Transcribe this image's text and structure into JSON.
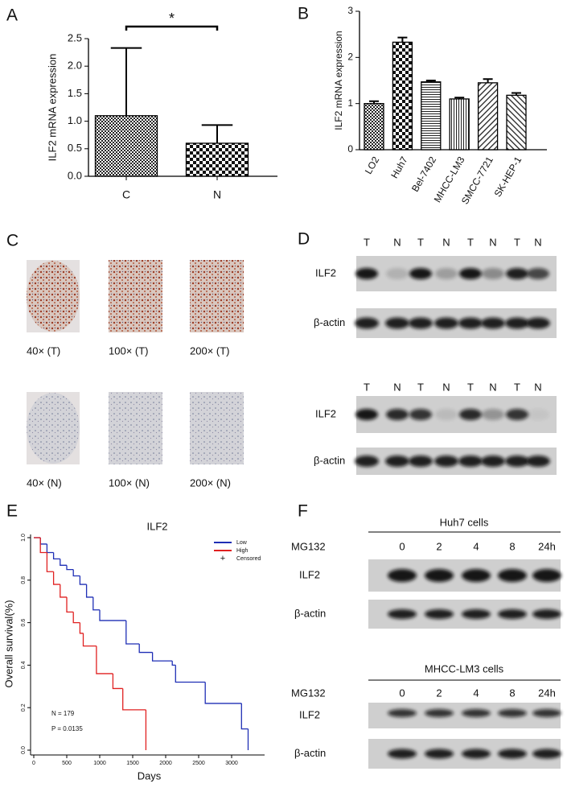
{
  "panel_labels": [
    "A",
    "B",
    "C",
    "D",
    "E",
    "F"
  ],
  "chart_data": [
    {
      "type": "bar",
      "y_label": "ILF2 mRNA expression",
      "categories": [
        "C",
        "N"
      ],
      "values": [
        1.1,
        0.6
      ],
      "errors": [
        1.23,
        0.33
      ],
      "patterns": [
        "fine-check",
        "check"
      ],
      "ylim": [
        0,
        2.5
      ],
      "yticks": [
        {
          "value": 0,
          "label": "0.0"
        },
        0.5,
        {
          "value": 1,
          "label": "1.0"
        },
        1.5,
        {
          "value": 2,
          "label": "2.0"
        },
        2.5
      ],
      "annotation": "*"
    },
    {
      "type": "bar",
      "y_label": "ILF2 mRNA expression",
      "categories": [
        "LO2",
        "Huh7",
        "Bel-7402",
        "MHCC-LM3",
        "SMCC-7721",
        "SK-HEP-1"
      ],
      "values": [
        1.0,
        2.33,
        1.47,
        1.1,
        1.45,
        1.18
      ],
      "errors": [
        0.05,
        0.1,
        0.03,
        0.03,
        0.08,
        0.05
      ],
      "patterns": [
        "fine-check",
        "check",
        "hlines",
        "vlines",
        "diag",
        "diag2"
      ],
      "ylim": [
        0,
        3
      ],
      "yticks": [
        0,
        1,
        2,
        3
      ]
    },
    {
      "type": "step",
      "title": "ILF2",
      "x_label": "Days",
      "y_label": "Overall survival(%)",
      "series": [
        {
          "name": "Low",
          "color": "#1f2fb5",
          "x": [
            0,
            100,
            200,
            300,
            400,
            500,
            600,
            700,
            800,
            900,
            1000,
            1400,
            1600,
            1800,
            2100,
            2150,
            2600,
            3150,
            3250
          ],
          "values": [
            1.0,
            0.97,
            0.93,
            0.9,
            0.87,
            0.85,
            0.82,
            0.78,
            0.72,
            0.66,
            0.61,
            0.5,
            0.46,
            0.42,
            0.4,
            0.32,
            0.22,
            0.1,
            0.0
          ]
        },
        {
          "name": "High",
          "color": "#e02020",
          "x": [
            0,
            100,
            200,
            300,
            400,
            500,
            600,
            700,
            750,
            950,
            1200,
            1350,
            1700
          ],
          "values": [
            1.0,
            0.93,
            0.84,
            0.78,
            0.72,
            0.65,
            0.6,
            0.55,
            0.49,
            0.36,
            0.29,
            0.19,
            0.0
          ]
        }
      ],
      "censored_label": "Censored",
      "censored_symbol": "+",
      "annotations": [
        "N = 179",
        "P = 0.0135"
      ],
      "xlim": [
        0,
        3500
      ],
      "xticks": [
        0,
        500,
        1000,
        1500,
        2000,
        2500,
        3000
      ],
      "ylim": [
        0,
        1
      ],
      "yticks": [
        {
          "value": 0,
          "label": "0.0"
        },
        0.2,
        0.4,
        0.6,
        0.8,
        {
          "value": 1,
          "label": "1.0"
        }
      ]
    }
  ],
  "ihc": {
    "labels": [
      "40× (T)",
      "100× (T)",
      "200× (T)",
      "40× (N)",
      "100× (N)",
      "200× (N)"
    ]
  },
  "western_d": {
    "blots": [
      {
        "lanes": [
          "T",
          "N",
          "T",
          "N",
          "T",
          "N",
          "T",
          "N"
        ],
        "rows": [
          "ILF2",
          "β-actin"
        ]
      },
      {
        "lanes": [
          "T",
          "N",
          "T",
          "N",
          "T",
          "N",
          "T",
          "N"
        ],
        "rows": [
          "ILF2",
          "β-actin"
        ]
      }
    ]
  },
  "western_f": {
    "blots": [
      {
        "title": "Huh7 cells",
        "treatment": "MG132",
        "lanes": [
          "0",
          "2",
          "4",
          "8",
          "24h"
        ],
        "rows": [
          "ILF2",
          "β-actin"
        ]
      },
      {
        "title": "MHCC-LM3 cells",
        "treatment": "MG132",
        "lanes": [
          "0",
          "2",
          "4",
          "8",
          "24h"
        ],
        "rows": [
          "ILF2",
          "β-actin"
        ]
      }
    ]
  }
}
